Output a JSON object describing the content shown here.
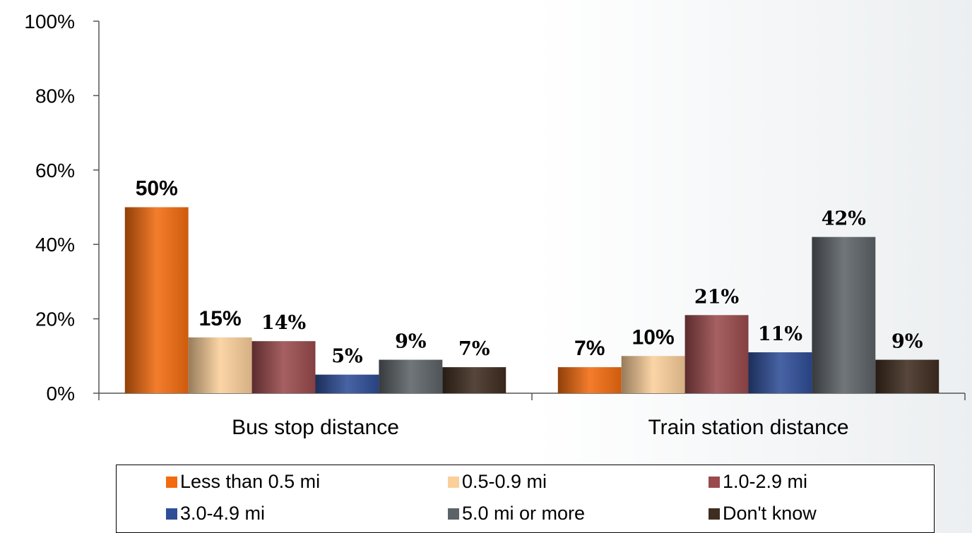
{
  "chart_data": {
    "type": "bar",
    "title": "",
    "xlabel": "",
    "ylabel": "",
    "ylim": [
      0,
      100
    ],
    "yticks": [
      "0%",
      "20%",
      "40%",
      "60%",
      "80%",
      "100%"
    ],
    "grid": false,
    "legend_position": "bottom",
    "categories": [
      "Bus stop distance",
      "Train station distance"
    ],
    "series": [
      {
        "name": "Less than 0.5 mi",
        "color": "#f26b0f",
        "values": [
          50,
          7
        ],
        "labels": [
          "50%",
          "7%"
        ]
      },
      {
        "name": "0.5-0.9 mi",
        "color": "#fbcf9a",
        "values": [
          15,
          10
        ],
        "labels": [
          "15%",
          "10%"
        ]
      },
      {
        "name": "1.0-2.9 mi",
        "color": "#9a4a4c",
        "values": [
          14,
          21
        ],
        "labels": [
          "14%",
          "21%"
        ]
      },
      {
        "name": "3.0-4.9 mi",
        "color": "#2f4e98",
        "values": [
          5,
          11
        ],
        "labels": [
          "5%",
          "11%"
        ]
      },
      {
        "name": "5.0 mi or more",
        "color": "#5c6367",
        "values": [
          9,
          42
        ],
        "labels": [
          "9%",
          "42%"
        ]
      },
      {
        "name": "Don't know",
        "color": "#3f2d20",
        "values": [
          7,
          9
        ],
        "labels": [
          "7%",
          "9%"
        ]
      }
    ]
  }
}
